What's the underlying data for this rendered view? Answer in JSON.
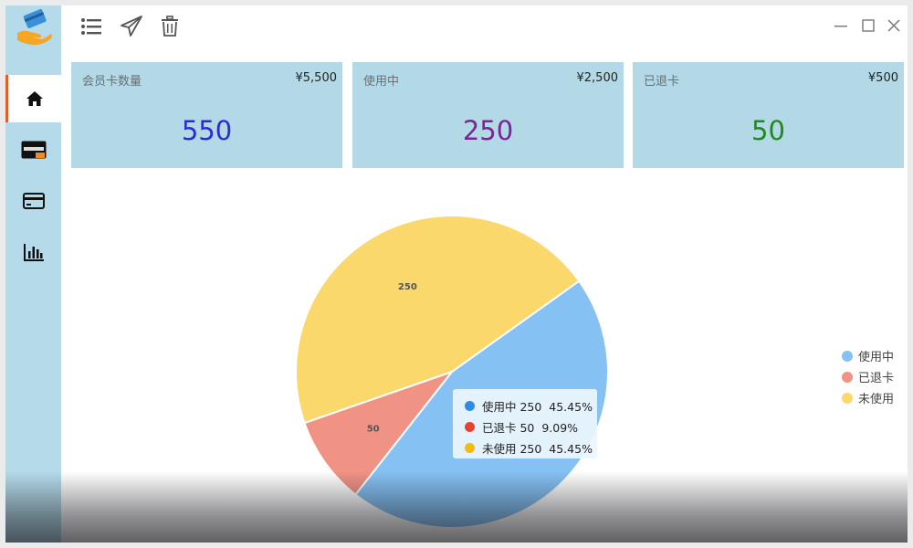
{
  "app": {
    "logo_icon": "card-in-hand-icon"
  },
  "sidebar": {
    "accent_color": "#e0622a",
    "items": [
      {
        "id": "home",
        "icon": "home-icon",
        "active": true
      },
      {
        "id": "discover-card",
        "icon": "discover-card-icon",
        "active": false
      },
      {
        "id": "credit-card",
        "icon": "credit-card-icon",
        "active": false
      },
      {
        "id": "stats",
        "icon": "bar-chart-icon",
        "active": false
      }
    ]
  },
  "toolbar": {
    "buttons": [
      {
        "id": "list",
        "icon": "list-icon"
      },
      {
        "id": "send",
        "icon": "paper-plane-icon"
      },
      {
        "id": "delete",
        "icon": "trash-icon"
      }
    ]
  },
  "window_controls": [
    "minimize-icon",
    "maximize-icon",
    "close-icon"
  ],
  "cards": [
    {
      "title": "会员卡数量",
      "amount": "¥5,500",
      "count": "550",
      "count_color": "#2b2bd8"
    },
    {
      "title": "使用中",
      "amount": "¥2,500",
      "count": "250",
      "count_color": "#7a2596"
    },
    {
      "title": "已退卡",
      "amount": "¥500",
      "count": "50",
      "count_color": "#1f8a1f"
    }
  ],
  "chart_data": {
    "type": "pie",
    "slices": [
      {
        "name": "使用中",
        "value": 250,
        "percent": "45.45%",
        "color": "#85c1f3",
        "label": ""
      },
      {
        "name": "已退卡",
        "value": 50,
        "percent": "9.09%",
        "color": "#f09385",
        "label": "50"
      },
      {
        "name": "未使用",
        "value": 250,
        "percent": "45.45%",
        "color": "#fad86c",
        "label": "250"
      }
    ],
    "legend_position": "right",
    "legend": [
      "使用中",
      "已退卡",
      "未使用"
    ]
  },
  "tooltip": {
    "rows": [
      {
        "name": "使用中",
        "value": "250",
        "percent": "45.45%",
        "color": "#2f8be6"
      },
      {
        "name": "已退卡",
        "value": "50",
        "percent": "9.09%",
        "color": "#e5432f"
      },
      {
        "name": "未使用",
        "value": "250",
        "percent": "45.45%",
        "color": "#f5bb0c"
      }
    ]
  }
}
